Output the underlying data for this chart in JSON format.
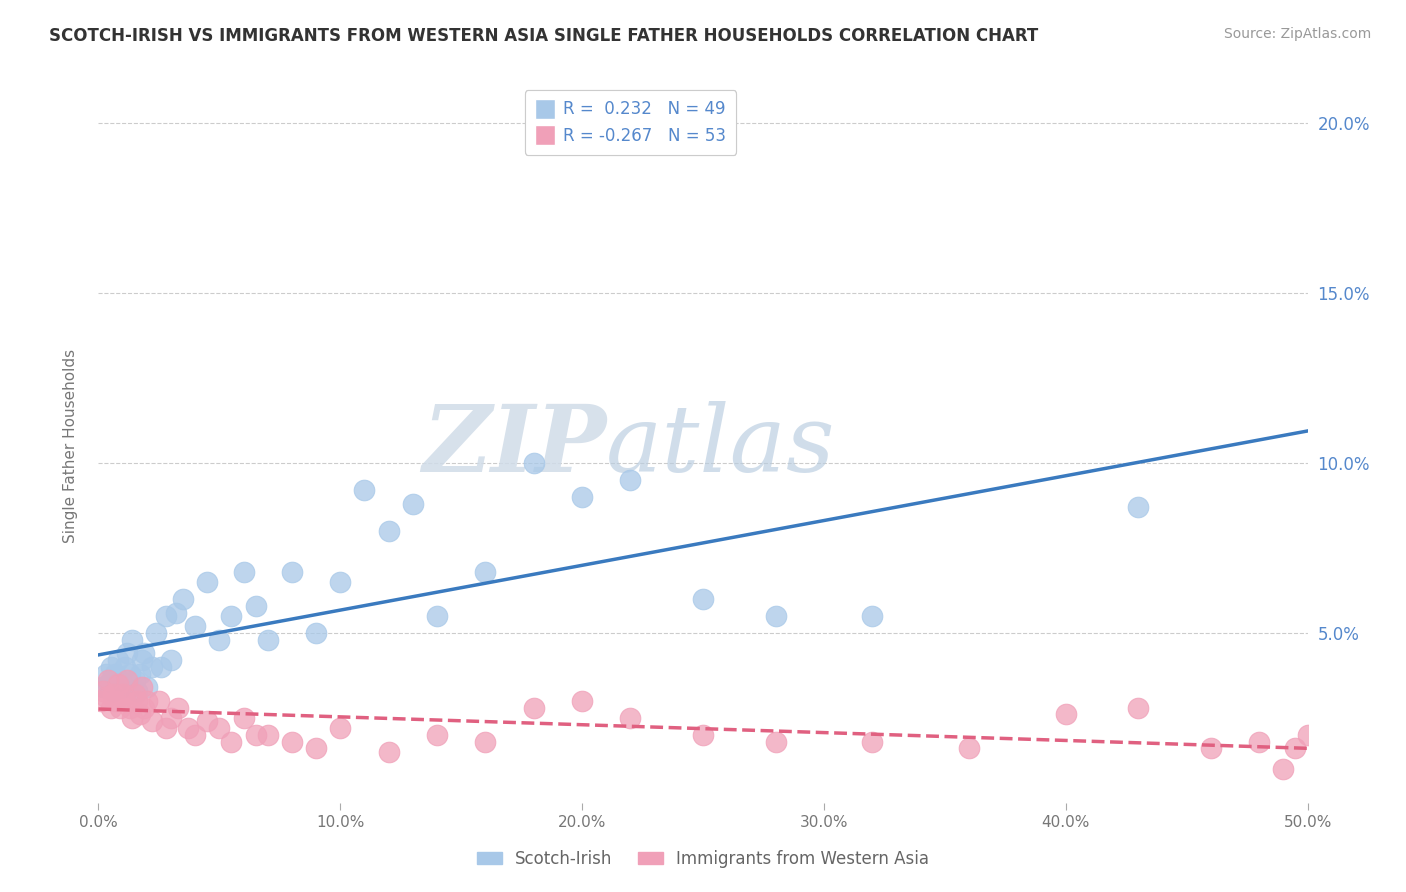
{
  "title": "SCOTCH-IRISH VS IMMIGRANTS FROM WESTERN ASIA SINGLE FATHER HOUSEHOLDS CORRELATION CHART",
  "source": "Source: ZipAtlas.com",
  "ylabel": "Single Father Households",
  "xlim": [
    0.0,
    0.5
  ],
  "ylim": [
    0.0,
    0.21
  ],
  "xticks": [
    0.0,
    0.1,
    0.2,
    0.3,
    0.4,
    0.5
  ],
  "yticks": [
    0.0,
    0.05,
    0.1,
    0.15,
    0.2
  ],
  "xticklabels": [
    "0.0%",
    "10.0%",
    "20.0%",
    "30.0%",
    "40.0%",
    "50.0%"
  ],
  "yticklabels_right": [
    "",
    "5.0%",
    "10.0%",
    "15.0%",
    "20.0%"
  ],
  "color_blue": "#a8c8e8",
  "color_pink": "#f0a0b8",
  "color_blue_line": "#3a7abf",
  "color_pink_line": "#e06080",
  "R_blue": 0.232,
  "N_blue": 49,
  "R_pink": -0.267,
  "N_pink": 53,
  "legend_label_blue": "Scotch-Irish",
  "legend_label_pink": "Immigrants from Western Asia",
  "watermark_zip": "ZIP",
  "watermark_atlas": "atlas",
  "blue_scatter_x": [
    0.002,
    0.003,
    0.004,
    0.005,
    0.005,
    0.006,
    0.007,
    0.008,
    0.009,
    0.01,
    0.011,
    0.012,
    0.013,
    0.014,
    0.015,
    0.016,
    0.017,
    0.018,
    0.019,
    0.02,
    0.022,
    0.024,
    0.026,
    0.028,
    0.03,
    0.032,
    0.035,
    0.04,
    0.045,
    0.05,
    0.055,
    0.06,
    0.065,
    0.07,
    0.08,
    0.09,
    0.1,
    0.11,
    0.12,
    0.13,
    0.14,
    0.16,
    0.18,
    0.2,
    0.22,
    0.25,
    0.28,
    0.32,
    0.43
  ],
  "blue_scatter_y": [
    0.034,
    0.038,
    0.035,
    0.04,
    0.036,
    0.033,
    0.038,
    0.042,
    0.036,
    0.034,
    0.04,
    0.044,
    0.038,
    0.048,
    0.036,
    0.033,
    0.038,
    0.042,
    0.044,
    0.034,
    0.04,
    0.05,
    0.04,
    0.055,
    0.042,
    0.056,
    0.06,
    0.052,
    0.065,
    0.048,
    0.055,
    0.068,
    0.058,
    0.048,
    0.068,
    0.05,
    0.065,
    0.092,
    0.08,
    0.088,
    0.055,
    0.068,
    0.1,
    0.09,
    0.095,
    0.06,
    0.055,
    0.055,
    0.087
  ],
  "pink_scatter_x": [
    0.001,
    0.002,
    0.003,
    0.004,
    0.005,
    0.006,
    0.007,
    0.008,
    0.009,
    0.01,
    0.011,
    0.012,
    0.013,
    0.014,
    0.015,
    0.016,
    0.017,
    0.018,
    0.019,
    0.02,
    0.022,
    0.025,
    0.028,
    0.03,
    0.033,
    0.037,
    0.04,
    0.045,
    0.05,
    0.055,
    0.06,
    0.065,
    0.07,
    0.08,
    0.09,
    0.1,
    0.12,
    0.14,
    0.16,
    0.18,
    0.2,
    0.22,
    0.25,
    0.28,
    0.32,
    0.36,
    0.4,
    0.43,
    0.46,
    0.48,
    0.49,
    0.495,
    0.5
  ],
  "pink_scatter_y": [
    0.03,
    0.033,
    0.031,
    0.036,
    0.028,
    0.032,
    0.03,
    0.035,
    0.028,
    0.032,
    0.03,
    0.036,
    0.028,
    0.025,
    0.032,
    0.03,
    0.026,
    0.034,
    0.028,
    0.03,
    0.024,
    0.03,
    0.022,
    0.025,
    0.028,
    0.022,
    0.02,
    0.024,
    0.022,
    0.018,
    0.025,
    0.02,
    0.02,
    0.018,
    0.016,
    0.022,
    0.015,
    0.02,
    0.018,
    0.028,
    0.03,
    0.025,
    0.02,
    0.018,
    0.018,
    0.016,
    0.026,
    0.028,
    0.016,
    0.018,
    0.01,
    0.016,
    0.02
  ]
}
